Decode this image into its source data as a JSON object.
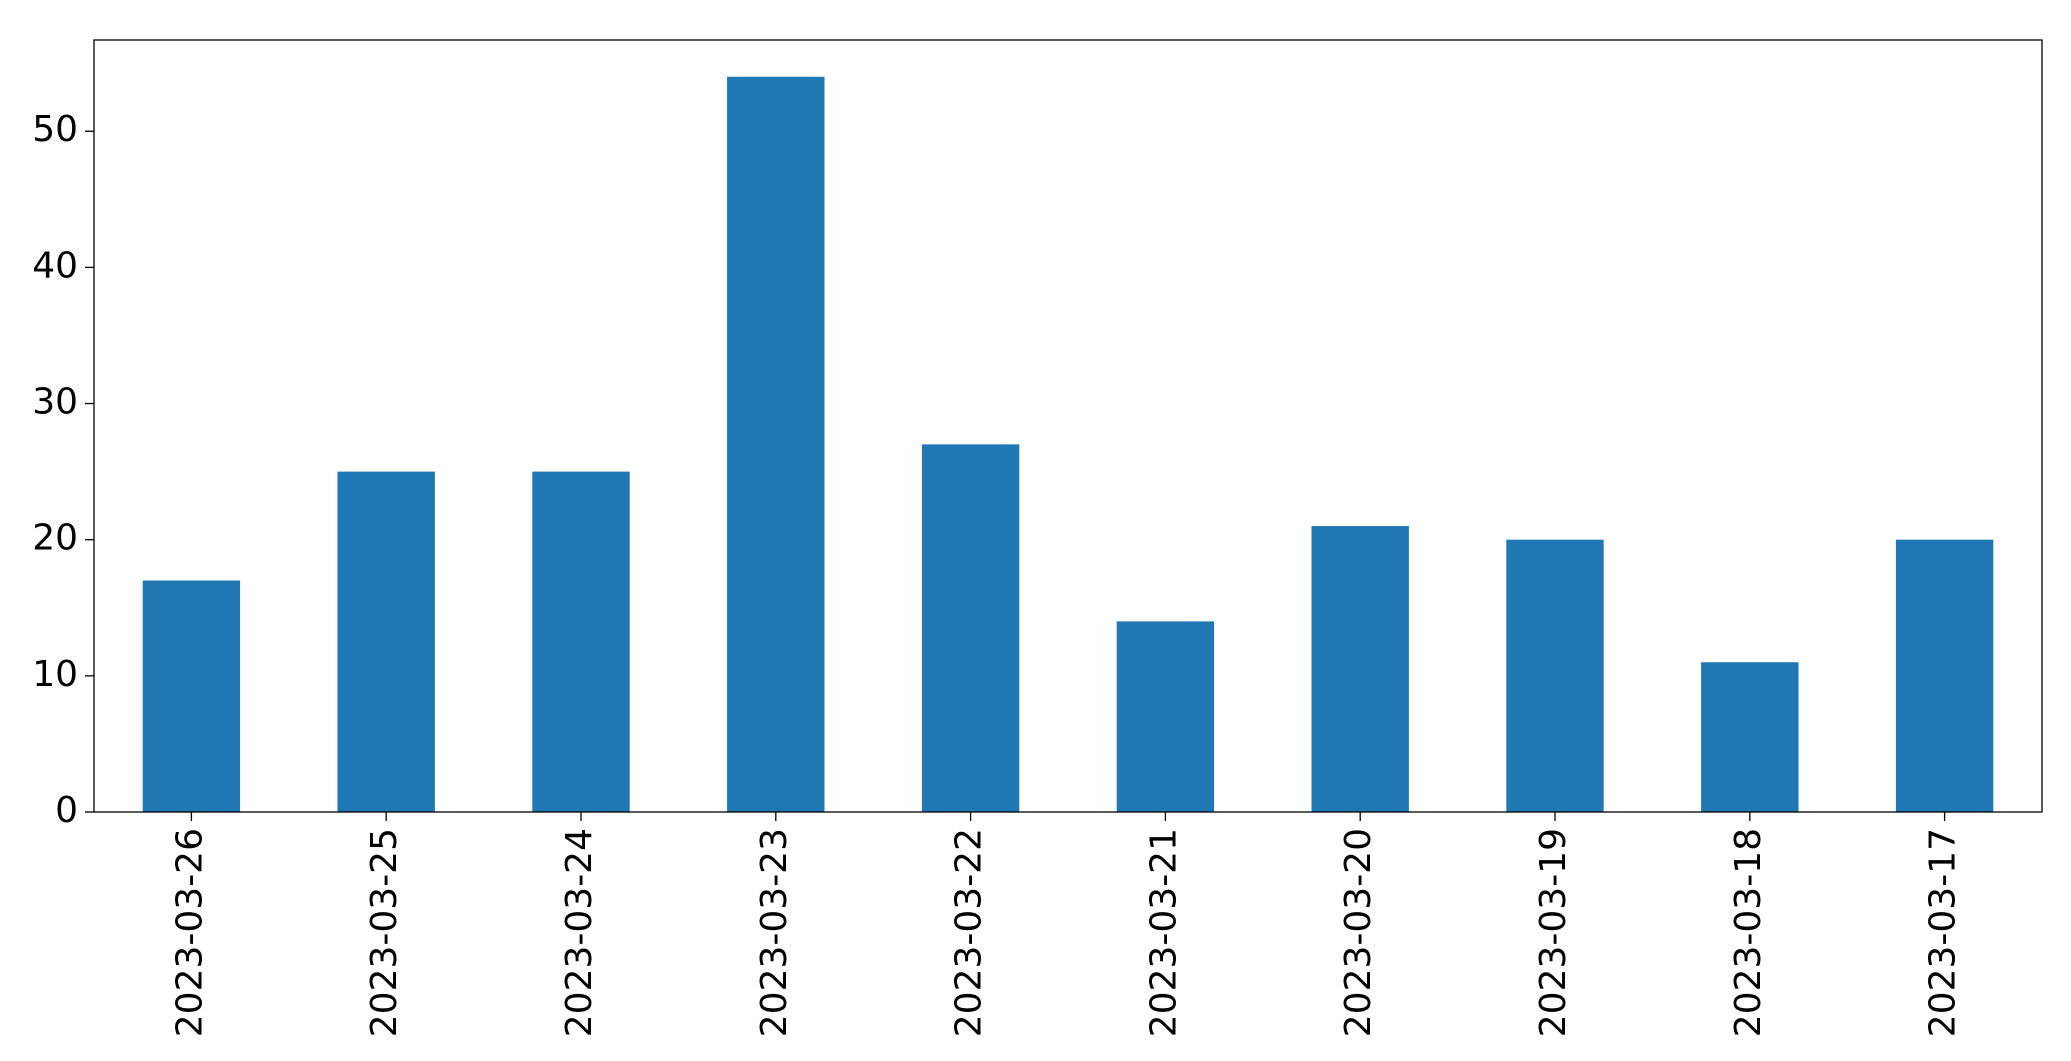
{
  "chart_data": {
    "type": "bar",
    "categories": [
      "2023-03-26",
      "2023-03-25",
      "2023-03-24",
      "2023-03-23",
      "2023-03-22",
      "2023-03-21",
      "2023-03-20",
      "2023-03-19",
      "2023-03-18",
      "2023-03-17"
    ],
    "values": [
      17,
      25,
      25,
      54,
      27,
      14,
      21,
      20,
      11,
      20
    ],
    "color": "#1f77b4",
    "ylim": [
      0,
      56.7
    ],
    "yticks": [
      0,
      10,
      20,
      30,
      40,
      50
    ],
    "grid": false
  }
}
